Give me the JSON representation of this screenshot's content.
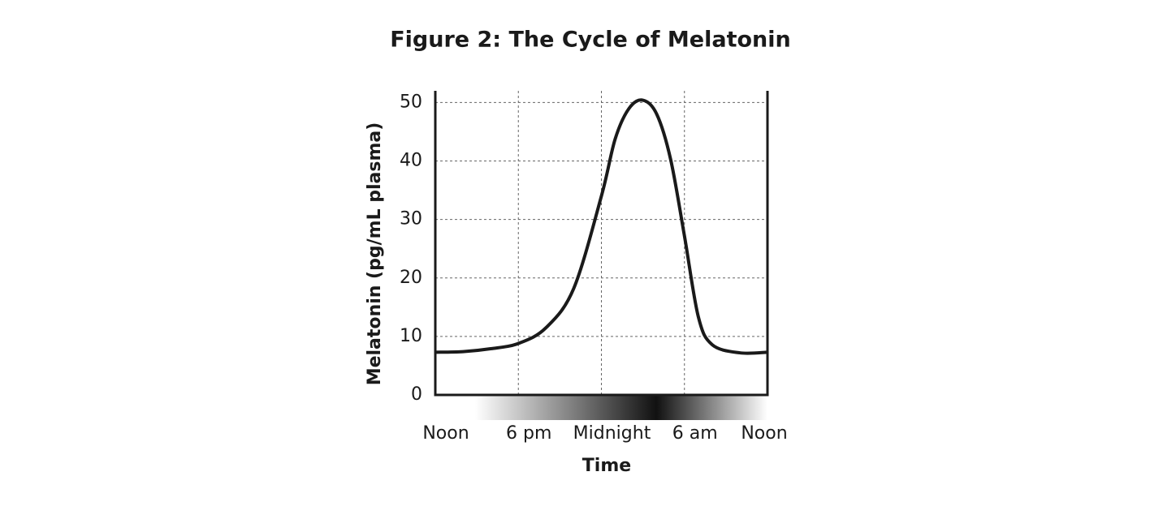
{
  "chart_data": {
    "type": "line",
    "title": "Figure 2: The Cycle of Melatonin",
    "x_label": "Time",
    "y_label": "Melatonin (pg/mL plasma)",
    "x": [
      0,
      2,
      4,
      6,
      8,
      10,
      12,
      13,
      14,
      15,
      16,
      17,
      18,
      19,
      20,
      22,
      24
    ],
    "series": [
      {
        "color": "#1a1a1a",
        "values": [
          7.3,
          7.4,
          7.9,
          8.8,
          11.5,
          18.2,
          34,
          43.8,
          49,
          50.4,
          48,
          40.3,
          27.2,
          13.4,
          8.6,
          7.2,
          7.3
        ]
      }
    ],
    "xlim": [
      0,
      24
    ],
    "xticks": [
      {
        "value": 0,
        "label": "Noon"
      },
      {
        "value": 6,
        "label": "6 pm"
      },
      {
        "value": 12,
        "label": "Midnight"
      },
      {
        "value": 18,
        "label": "6 am"
      },
      {
        "value": 24,
        "label": "Noon"
      }
    ],
    "ylim": [
      0,
      52
    ],
    "yticks": [
      0,
      10,
      20,
      30,
      40,
      50
    ],
    "grid": true
  }
}
